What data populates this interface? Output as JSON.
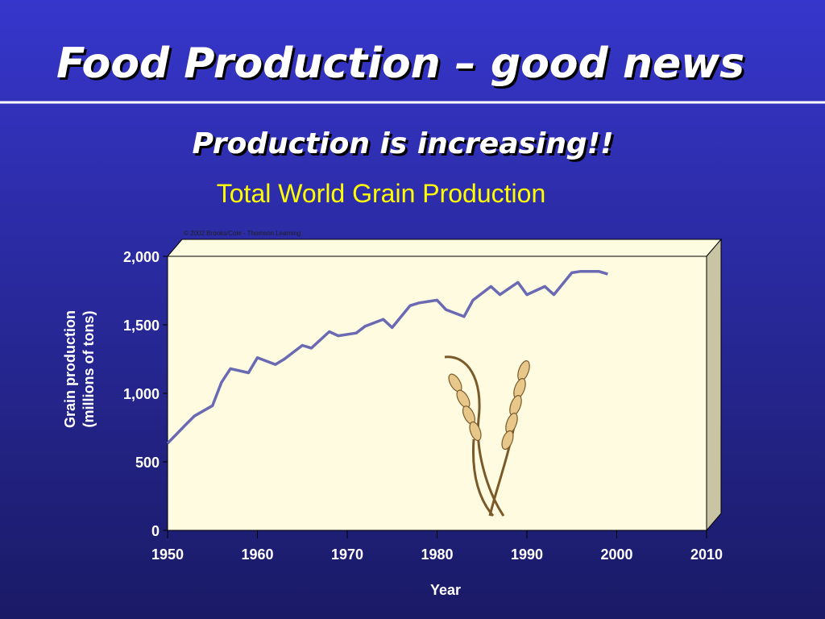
{
  "chart_data": {
    "type": "line",
    "heading": "Food Production – good news",
    "subtitle": "Production is increasing!!",
    "title": "Total World Grain Production",
    "copyright": "© 2002 Brooks/Cole - Thomson Learning",
    "xlabel": "Year",
    "ylabel": [
      "Grain production",
      "(millions of tons)"
    ],
    "x": [
      1950,
      1952,
      1953,
      1955,
      1956,
      1957,
      1959,
      1960,
      1962,
      1963,
      1965,
      1966,
      1968,
      1969,
      1971,
      1972,
      1974,
      1975,
      1977,
      1978,
      1980,
      1981,
      1983,
      1984,
      1986,
      1987,
      1989,
      1990,
      1992,
      1993,
      1995,
      1996,
      1998,
      1999
    ],
    "series": [
      {
        "name": "Total World Grain Production",
        "color": "#6a6ab4",
        "values": [
          635,
          770,
          835,
          910,
          1080,
          1180,
          1150,
          1260,
          1210,
          1250,
          1350,
          1330,
          1450,
          1420,
          1440,
          1490,
          1540,
          1480,
          1640,
          1660,
          1680,
          1610,
          1560,
          1680,
          1780,
          1720,
          1810,
          1720,
          1780,
          1720,
          1880,
          1890,
          1890,
          1870
        ]
      }
    ],
    "xlim": [
      1950,
      2010
    ],
    "xticks": [
      1950,
      1960,
      1970,
      1980,
      1990,
      2000,
      2010
    ],
    "ylim": [
      0,
      2000
    ],
    "yticks": [
      0,
      500,
      {
        "value": 1000,
        "label": "1,000"
      },
      {
        "value": 1500,
        "label": "1,500"
      },
      {
        "value": 2000,
        "label": "2,000"
      }
    ]
  }
}
